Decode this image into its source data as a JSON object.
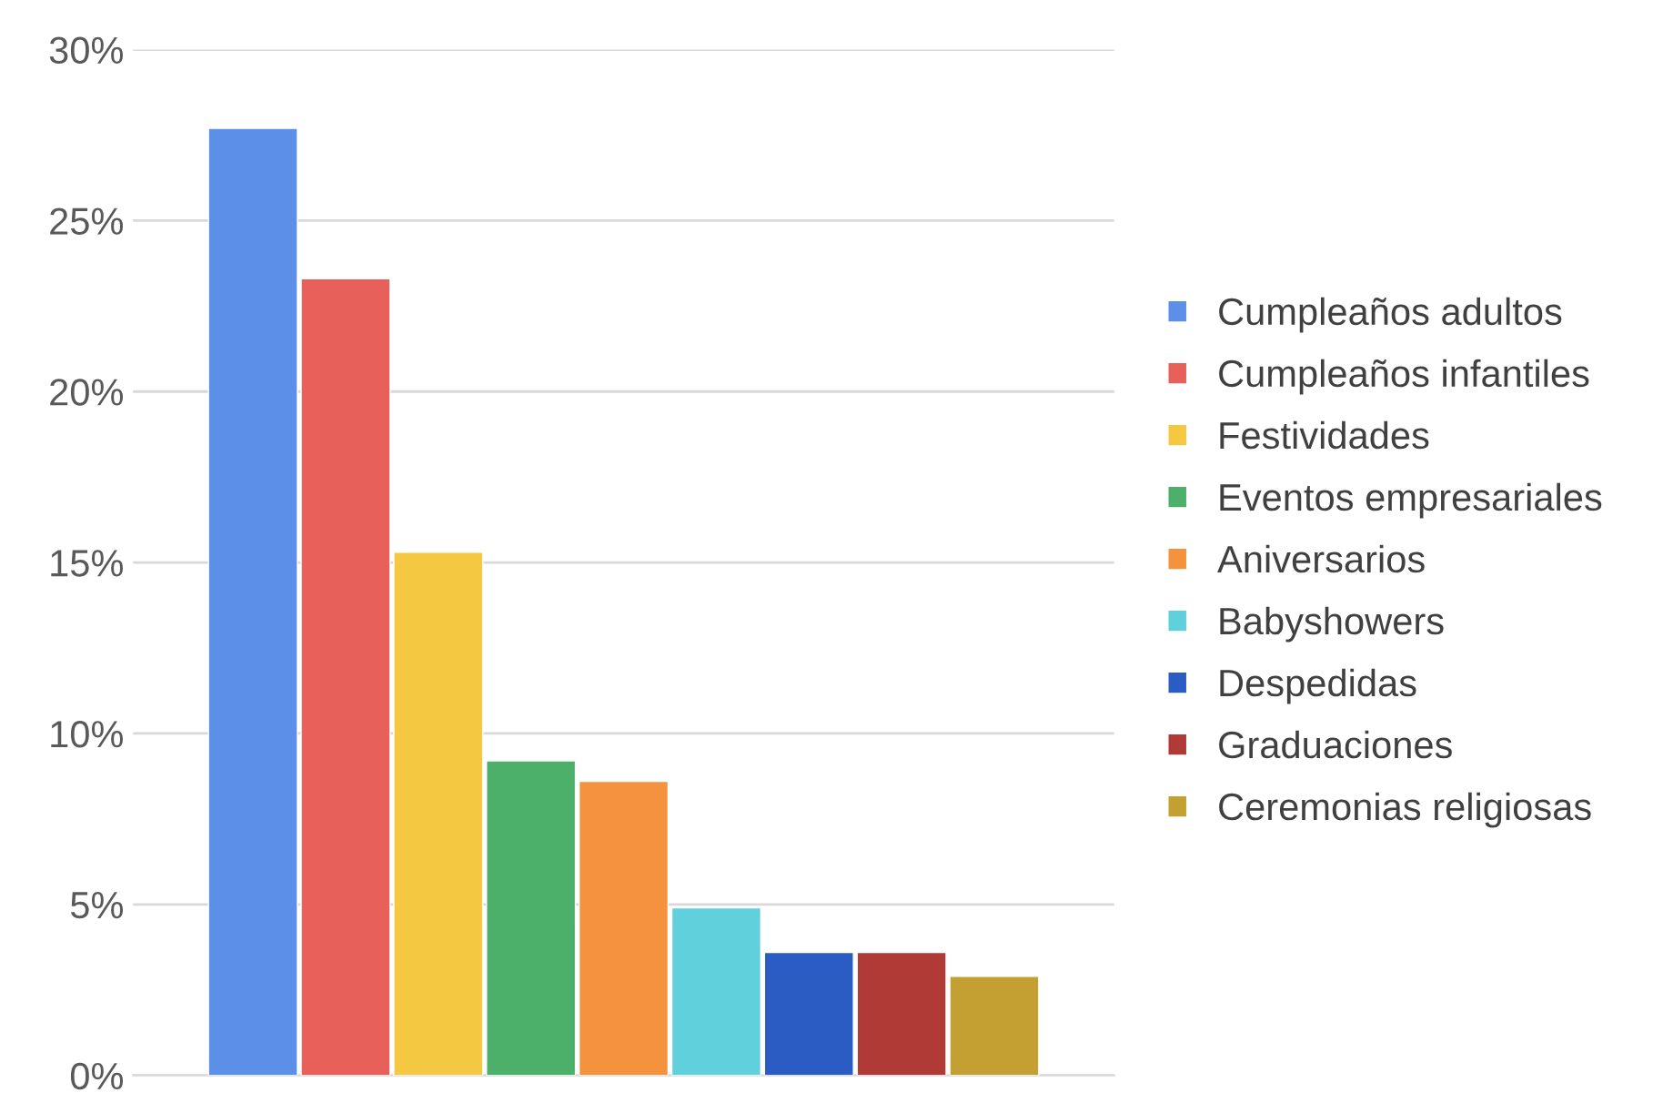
{
  "chart_data": {
    "type": "bar",
    "categories": [
      null
    ],
    "series": [
      {
        "name": "Cumpleaños adultos",
        "color": "#5b8fe8",
        "values": [
          27.7
        ]
      },
      {
        "name": "Cumpleaños infantiles",
        "color": "#e8605a",
        "values": [
          23.3
        ]
      },
      {
        "name": "Festividades",
        "color": "#f5c842",
        "values": [
          15.3
        ]
      },
      {
        "name": "Eventos empresariales",
        "color": "#4caf6a",
        "values": [
          9.2
        ]
      },
      {
        "name": "Aniversarios",
        "color": "#f5923e",
        "values": [
          8.6
        ]
      },
      {
        "name": "Babyshowers",
        "color": "#5fd0dc",
        "values": [
          4.9
        ]
      },
      {
        "name": "Despedidas",
        "color": "#2a5cc4",
        "values": [
          3.6
        ]
      },
      {
        "name": "Graduaciones",
        "color": "#b03a36",
        "values": [
          3.6
        ]
      },
      {
        "name": "Ceremonias religiosas",
        "color": "#c4a032",
        "values": [
          2.9
        ]
      }
    ],
    "ylim": [
      0,
      30
    ],
    "yticks": [
      {
        "value": 0,
        "label": "0%"
      },
      {
        "value": 5,
        "label": "5%"
      },
      {
        "value": 10,
        "label": "10%"
      },
      {
        "value": 15,
        "label": "15%"
      },
      {
        "value": 20,
        "label": "20%"
      },
      {
        "value": 25,
        "label": "25%"
      },
      {
        "value": 30,
        "label": "30%"
      }
    ],
    "grid": "y",
    "legend": "right"
  }
}
